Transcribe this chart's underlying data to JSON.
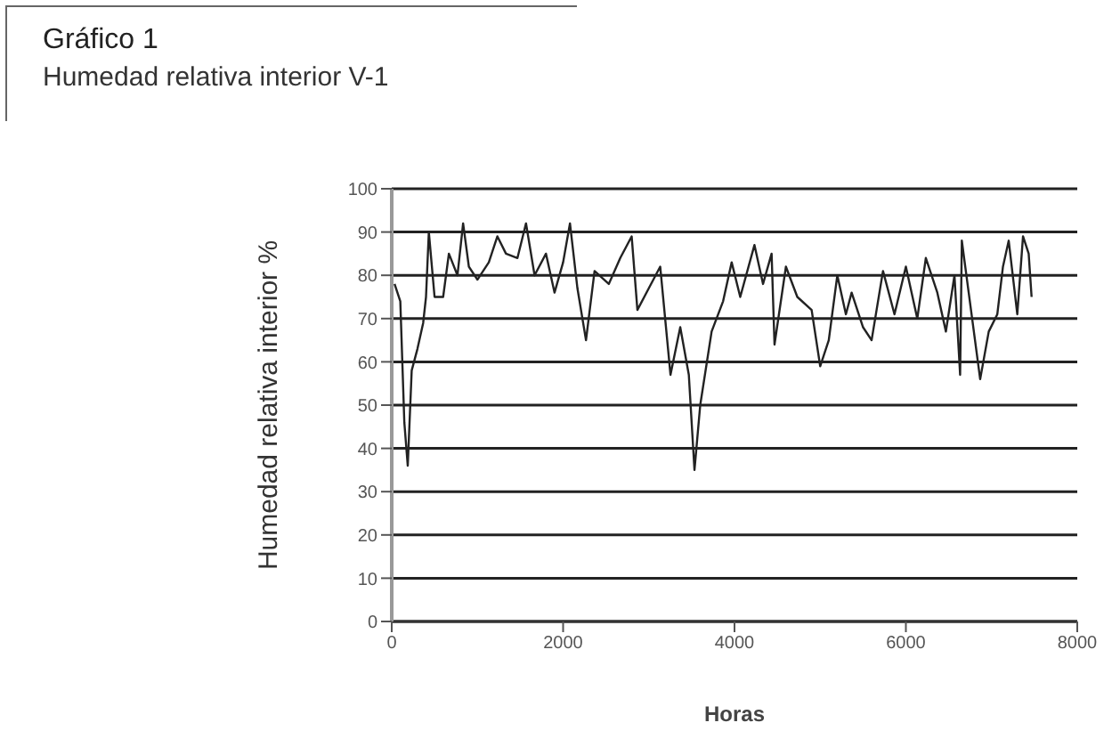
{
  "chart_data": {
    "type": "line",
    "title": "Gráfico 1",
    "subtitle": "Humedad relativa interior V-1",
    "xlabel": "Horas",
    "ylabel": "Humedad relativa interior %",
    "x": [
      33,
      100,
      147,
      187,
      233,
      300,
      367,
      400,
      433,
      500,
      600,
      667,
      767,
      833,
      900,
      1000,
      1133,
      1233,
      1333,
      1467,
      1567,
      1667,
      1800,
      1900,
      2000,
      2080,
      2167,
      2267,
      2367,
      2533,
      2667,
      2800,
      2867,
      3000,
      3133,
      3253,
      3367,
      3467,
      3533,
      3600,
      3733,
      3867,
      3967,
      4067,
      4233,
      4333,
      4433,
      4467,
      4600,
      4733,
      4900,
      5000,
      5100,
      5200,
      5300,
      5367,
      5500,
      5600,
      5733,
      5867,
      6000,
      6133,
      6233,
      6367,
      6467,
      6567,
      6633,
      6653,
      6733,
      6867,
      6967,
      7067,
      7133,
      7200,
      7300,
      7367,
      7433,
      7467
    ],
    "values": [
      78,
      74,
      46,
      36,
      58,
      63,
      69,
      75,
      90,
      75,
      75,
      85,
      80,
      92,
      82,
      79,
      83,
      89,
      85,
      84,
      92,
      80,
      85,
      76,
      83,
      92,
      77,
      65,
      81,
      78,
      84,
      89,
      72,
      77,
      82,
      57,
      68,
      57,
      35,
      50,
      67,
      74,
      83,
      75,
      87,
      78,
      85,
      64,
      82,
      75,
      72,
      59,
      65,
      80,
      71,
      76,
      68,
      65,
      81,
      71,
      82,
      70,
      84,
      76,
      67,
      80,
      57,
      88,
      76,
      56,
      67,
      71,
      82,
      88,
      71,
      89,
      85,
      75
    ],
    "color": "#222222",
    "xlim": [
      0,
      8000
    ],
    "xticks": [
      0,
      2000,
      4000,
      6000,
      8000
    ],
    "ylim": [
      0,
      100
    ],
    "yticks": [
      0,
      10,
      20,
      30,
      40,
      50,
      60,
      70,
      80,
      90,
      100
    ],
    "grid": "y"
  }
}
